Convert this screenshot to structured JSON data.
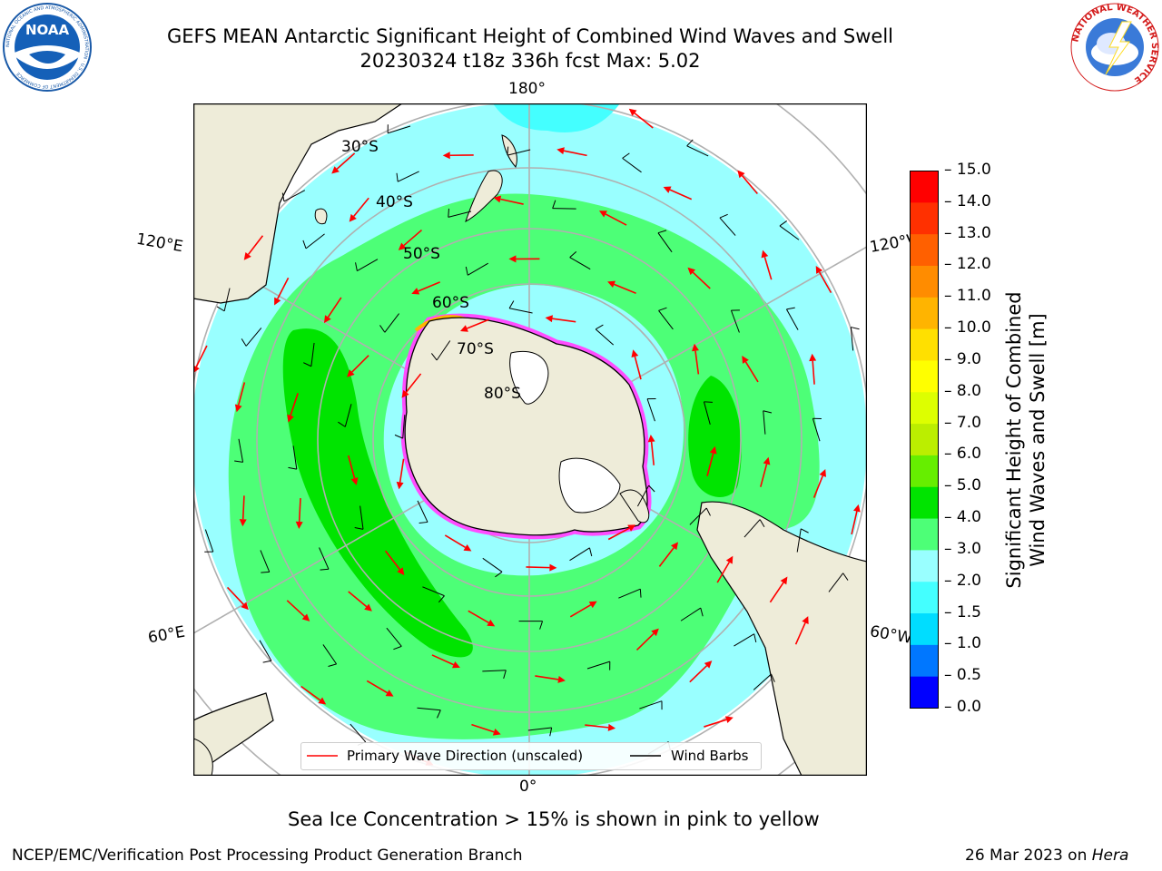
{
  "title": {
    "line1": "GEFS MEAN Antarctic Significant Height of Combined Wind Waves and Swell",
    "line2": "20230324 t18z 336h fcst   Max: 5.02"
  },
  "logos": {
    "noaa_text": "NOAA",
    "noaa_ring": "NATIONAL OCEANIC AND ATMOSPHERIC ADMINISTRATION · U.S. DEPARTMENT OF COMMERCE",
    "nws_ring": "NATIONAL WEATHER SERVICE"
  },
  "map": {
    "lon_labels": {
      "top": "180°",
      "bottom": "0°",
      "left_upper": "120°E",
      "left_lower": "60°E",
      "right_upper": "120°W",
      "right_lower": "60°W"
    },
    "lat_labels": [
      "30°S",
      "40°S",
      "50°S",
      "60°S",
      "70°S",
      "80°S"
    ],
    "colors": {
      "land": "#eeecd9",
      "ocean_1_5_2": "#44ffff",
      "ocean_2_3": "#99ffff",
      "ocean_3_4": "#4dff77",
      "ocean_4_5": "#00e400",
      "sea_ice_pink": "#ff4dff",
      "sea_ice_orange": "#ffb400",
      "wave_arrow": "#ff0000",
      "wind_barb": "#000000",
      "grid": "#b0b0b0"
    }
  },
  "legend": {
    "wave": "Primary Wave Direction (unscaled)",
    "barbs": "Wind Barbs"
  },
  "colorbar": {
    "title_line1": "Significant Height of Combined",
    "title_line2": "Wind Waves and Swell [m]",
    "ticks": [
      "0.0",
      "0.5",
      "1.0",
      "1.5",
      "2.0",
      "3.0",
      "4.0",
      "5.0",
      "6.0",
      "7.0",
      "8.0",
      "9.0",
      "10.0",
      "11.0",
      "12.0",
      "13.0",
      "14.0",
      "15.0"
    ],
    "colors": [
      "#0000ff",
      "#0077ff",
      "#00ddff",
      "#44ffff",
      "#99ffff",
      "#4dff77",
      "#00e400",
      "#66ee00",
      "#bbee00",
      "#ddff00",
      "#ffff00",
      "#ffe000",
      "#ffb400",
      "#ff8c00",
      "#ff6000",
      "#ff3000",
      "#ff0000"
    ]
  },
  "caption": "Sea Ice Concentration > 15% is shown in pink to yellow",
  "footer": {
    "left": "NCEP/EMC/Verification Post Processing Product Generation Branch",
    "right_date": "26 Mar 2023 on",
    "right_host": "Hera"
  }
}
